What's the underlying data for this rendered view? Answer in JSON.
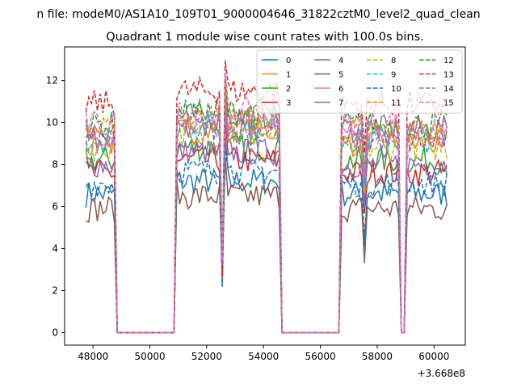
{
  "chart_data": {
    "type": "line",
    "suptitle": "n file: modeM0/AS1A10_109T01_9000004646_31822cztM0_level2_quad_clean",
    "title": "Quadrant 1 module wise count rates with 100.0s bins.",
    "xlabel": "",
    "ylabel": "",
    "x_offset_label": "+3.668e8",
    "xlim": [
      47000,
      61100
    ],
    "ylim": [
      -0.6,
      13.6
    ],
    "xticks": [
      48000,
      50000,
      52000,
      54000,
      56000,
      58000,
      60000
    ],
    "xtick_labels": [
      "48000",
      "50000",
      "52000",
      "54000",
      "56000",
      "58000",
      "60000"
    ],
    "yticks": [
      0,
      2,
      4,
      6,
      8,
      10,
      12
    ],
    "ytick_labels": [
      "0",
      "2",
      "4",
      "6",
      "8",
      "10",
      "12"
    ],
    "grid": false,
    "legend_position": "top-right",
    "legend_ncol": 4,
    "bin_seconds": 100,
    "segments": [
      {
        "start": 47750,
        "end": 48750,
        "active": true
      },
      {
        "start": 48850,
        "end": 50850,
        "active": false
      },
      {
        "start": 50950,
        "end": 52450,
        "active": true
      },
      {
        "start": 52550,
        "end": 52550,
        "active": "dip"
      },
      {
        "start": 52650,
        "end": 54550,
        "active": true
      },
      {
        "start": 54650,
        "end": 56650,
        "active": false
      },
      {
        "start": 56750,
        "end": 58750,
        "active": true
      },
      {
        "start": 58850,
        "end": 58950,
        "active": false
      },
      {
        "start": 59050,
        "end": 60450,
        "active": true
      }
    ],
    "series": [
      {
        "name": "0",
        "color": "#1f77b4",
        "dash": "solid",
        "level": 6.6
      },
      {
        "name": "1",
        "color": "#ff7f0e",
        "dash": "solid",
        "level": 9.0
      },
      {
        "name": "2",
        "color": "#2ca02c",
        "dash": "solid",
        "level": 8.2
      },
      {
        "name": "3",
        "color": "#d62728",
        "dash": "solid",
        "level": 7.6
      },
      {
        "name": "4",
        "color": "#9467bd",
        "dash": "solid",
        "level": 8.0
      },
      {
        "name": "5",
        "color": "#8c564b",
        "dash": "solid",
        "level": 5.9
      },
      {
        "name": "6",
        "color": "#e377c2",
        "dash": "solid",
        "level": 9.4
      },
      {
        "name": "7",
        "color": "#7f7f7f",
        "dash": "solid",
        "level": 9.7
      },
      {
        "name": "8",
        "color": "#bcbd22",
        "dash": "dashed",
        "level": 8.8
      },
      {
        "name": "9",
        "color": "#17becf",
        "dash": "dashed",
        "level": 9.2
      },
      {
        "name": "10",
        "color": "#1f77b4",
        "dash": "dashed",
        "level": 7.1
      },
      {
        "name": "11",
        "color": "#ff7f0e",
        "dash": "dashed",
        "level": 9.6
      },
      {
        "name": "12",
        "color": "#2ca02c",
        "dash": "dashed",
        "level": 9.9
      },
      {
        "name": "13",
        "color": "#d62728",
        "dash": "dashed",
        "level": 10.9
      },
      {
        "name": "14",
        "color": "#9467bd",
        "dash": "dashed",
        "level": 9.1
      },
      {
        "name": "15",
        "color": "#e377c2",
        "dash": "dashed",
        "level": 9.9
      }
    ]
  }
}
